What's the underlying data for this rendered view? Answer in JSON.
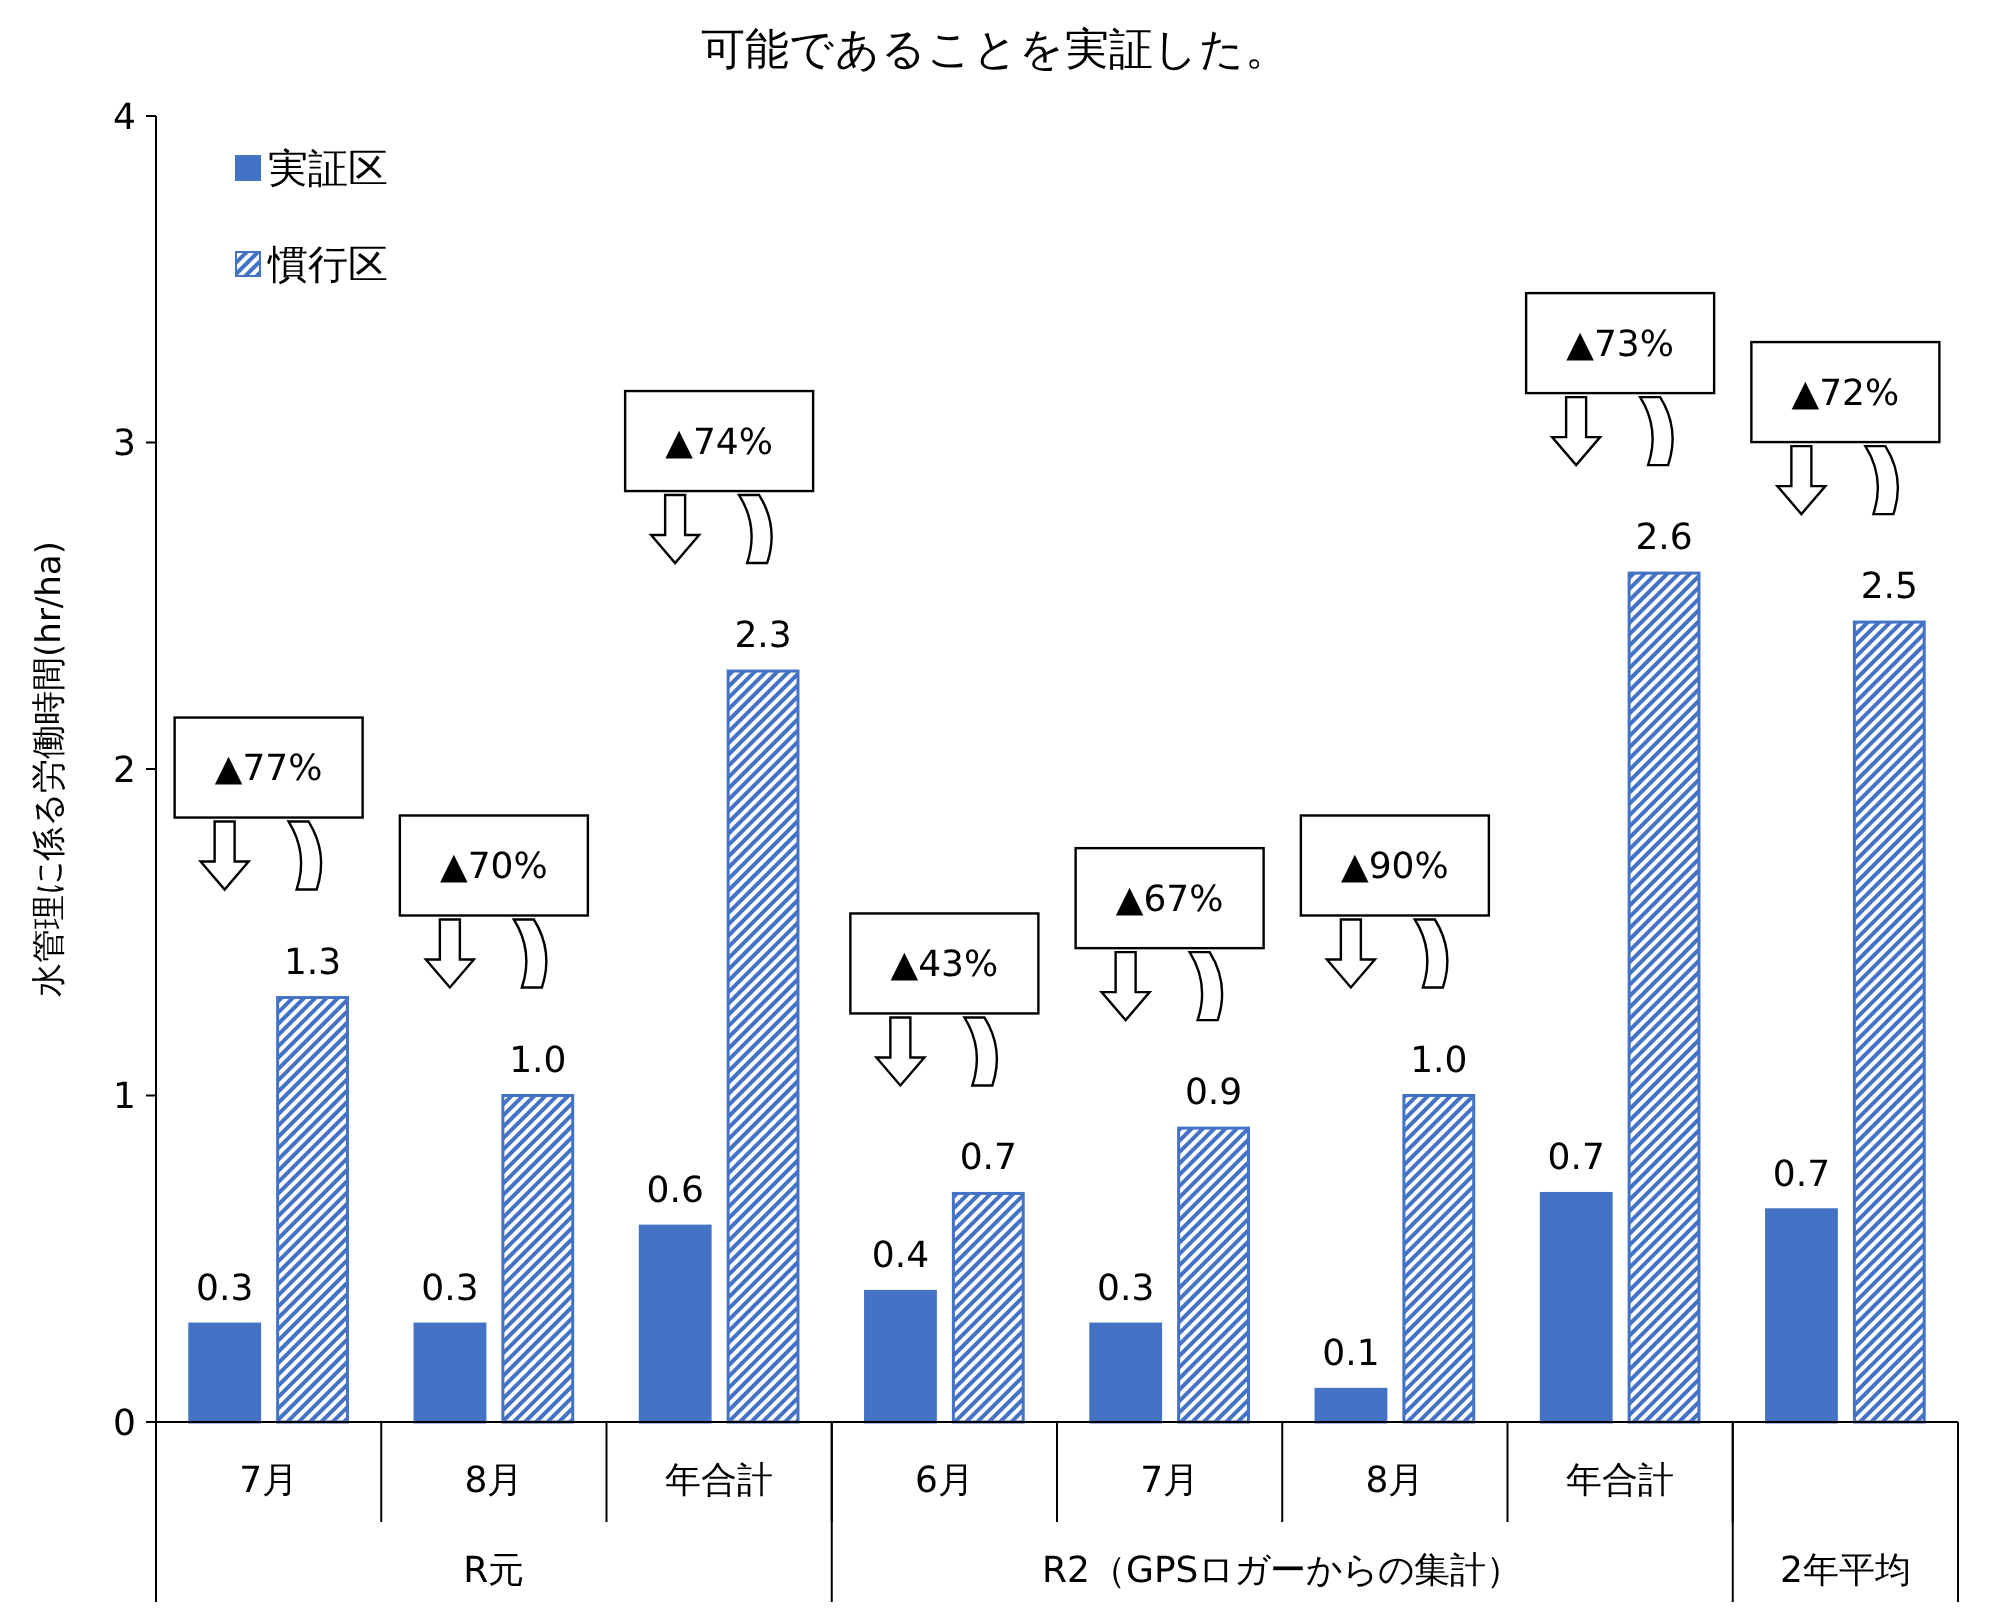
{
  "chart_data": {
    "type": "bar",
    "title": "可能であることを実証した。",
    "ylabel": "水管理に係る労働時間(hr/ha)",
    "categories": [
      "7月",
      "8月",
      "年合計",
      "6月",
      "7月",
      "8月",
      "年合計",
      null
    ],
    "series": [
      {
        "name": "実証区",
        "color": "#4472c4",
        "values": [
          0.3,
          0.3,
          0.6,
          0.4,
          0.3,
          0.1,
          0.7,
          0.65
        ],
        "value_labels": [
          "0.3",
          "0.3",
          "0.6",
          "0.4",
          "0.3",
          "0.1",
          "0.7",
          "0.7"
        ]
      },
      {
        "name": "慣行区",
        "color": "#4472c4",
        "values": [
          1.3,
          1.0,
          2.3,
          0.7,
          0.9,
          1.0,
          2.6,
          2.45
        ],
        "value_labels": [
          "1.3",
          "1.0",
          "2.3",
          "0.7",
          "0.9",
          "1.0",
          "2.6",
          "2.5"
        ]
      }
    ],
    "ylim": [
      0,
      4
    ],
    "yticks": [
      0,
      1,
      2,
      3,
      4
    ],
    "grid": false,
    "legend": "top left",
    "annotations": [
      "▲77%",
      "▲70%",
      "▲74%",
      "▲43%",
      "▲67%",
      "▲90%",
      "▲73%",
      "▲72%",
      "R元",
      "R2（GPSロガーからの集計）",
      "2年平均"
    ]
  }
}
